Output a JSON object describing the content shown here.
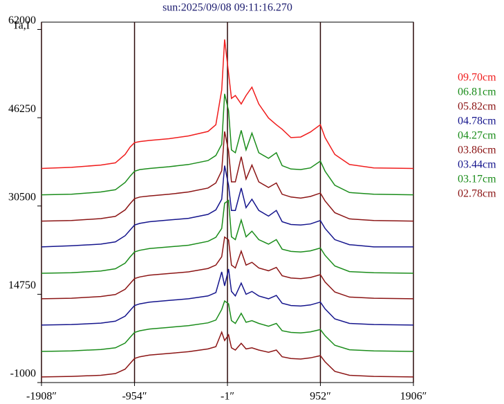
{
  "chart_data": {
    "type": "line",
    "title": "sun:2025/09/08 09:11:16.270",
    "ylabel": "Ta,I",
    "x": [
      -1908,
      -1600,
      -1300,
      -1150,
      -1050,
      -1000,
      -954,
      -900,
      -800,
      -600,
      -400,
      -200,
      -120,
      -60,
      -30,
      10,
      40,
      80,
      140,
      190,
      250,
      320,
      420,
      500,
      560,
      650,
      750,
      850,
      952,
      1000,
      1100,
      1250,
      1500,
      1906
    ],
    "xlim": [
      -1908,
      1906
    ],
    "ylim": [
      -1000,
      63300
    ],
    "xticks": [
      {
        "value": -1908,
        "label": "-1908″"
      },
      {
        "value": -954,
        "label": "-954″"
      },
      {
        "value": -1,
        "label": "-1″"
      },
      {
        "value": 952,
        "label": "952″"
      },
      {
        "value": 1906,
        "label": "1906″"
      }
    ],
    "yticks": [
      62000,
      46250,
      30500,
      14750,
      -1000
    ],
    "xgrid": true,
    "grid_color": "#2a0808",
    "legend": "right",
    "series": [
      {
        "name": "09.70cm",
        "color": "#f01c1c",
        "values": [
          37200,
          37400,
          37800,
          38200,
          39700,
          41000,
          41800,
          42000,
          42200,
          42500,
          43000,
          43800,
          45000,
          51200,
          60200,
          54200,
          49700,
          50200,
          48700,
          50200,
          51700,
          48700,
          46200,
          45000,
          44200,
          42700,
          42800,
          43700,
          45000,
          42700,
          39700,
          37900,
          37300,
          37200
        ]
      },
      {
        "name": "06.81cm",
        "color": "#1a8c1a",
        "values": [
          32500,
          32600,
          33000,
          33400,
          34700,
          35800,
          36700,
          37000,
          37200,
          37500,
          37900,
          38600,
          39500,
          41500,
          50500,
          47500,
          40500,
          40000,
          44000,
          40500,
          43500,
          40000,
          39000,
          40000,
          37700,
          37100,
          37000,
          37300,
          38500,
          36700,
          34200,
          32900,
          32600,
          32500
        ]
      },
      {
        "name": "05.82cm",
        "color": "#8b1414",
        "values": [
          27800,
          27900,
          28250,
          28650,
          29800,
          30900,
          31800,
          32100,
          32300,
          32600,
          33000,
          33700,
          34600,
          36800,
          43800,
          40300,
          34800,
          34800,
          39300,
          35300,
          37800,
          34800,
          33800,
          34600,
          32600,
          32100,
          31900,
          32200,
          32800,
          31400,
          29300,
          28200,
          27900,
          27800
        ]
      },
      {
        "name": "04.78cm",
        "color": "#14148c",
        "values": [
          23200,
          23400,
          23700,
          24100,
          25200,
          26200,
          27100,
          27400,
          27700,
          28000,
          28300,
          29000,
          29800,
          31700,
          37700,
          34200,
          29700,
          29700,
          33700,
          30200,
          31700,
          29700,
          28700,
          29700,
          27700,
          27200,
          27100,
          27300,
          27900,
          26500,
          24500,
          23600,
          23200,
          23200
        ]
      },
      {
        "name": "04.27cm",
        "color": "#1a8c1a",
        "values": [
          18500,
          18600,
          18900,
          19300,
          20300,
          21400,
          22300,
          22600,
          22900,
          23200,
          23500,
          24200,
          24900,
          26500,
          31000,
          31500,
          25000,
          24500,
          28000,
          25000,
          26000,
          24500,
          23700,
          24500,
          22800,
          22400,
          22300,
          22500,
          23000,
          21700,
          19800,
          18800,
          18600,
          18500
        ]
      },
      {
        "name": "03.86cm",
        "color": "#8b1414",
        "values": [
          13950,
          14050,
          14350,
          14700,
          15650,
          16650,
          17550,
          17850,
          18150,
          18450,
          18750,
          19350,
          19950,
          21450,
          24950,
          24450,
          19950,
          19450,
          22450,
          19950,
          20450,
          19450,
          18950,
          19550,
          18050,
          17650,
          17550,
          17750,
          18250,
          16950,
          15150,
          14250,
          14050,
          13950
        ]
      },
      {
        "name": "03.44cm",
        "color": "#14148c",
        "values": [
          9250,
          9350,
          9600,
          9950,
          10850,
          11850,
          12750,
          13050,
          13350,
          13650,
          13950,
          14450,
          15050,
          18750,
          16250,
          19250,
          15250,
          14450,
          16750,
          14750,
          15250,
          14450,
          13950,
          14550,
          13150,
          12750,
          12650,
          12850,
          13350,
          12150,
          10350,
          9550,
          9350,
          9250
        ]
      },
      {
        "name": "03.17cm",
        "color": "#1a8c1a",
        "values": [
          4550,
          4650,
          4900,
          5200,
          6050,
          7050,
          7950,
          8250,
          8550,
          8850,
          9150,
          9650,
          10150,
          12050,
          13550,
          13050,
          10050,
          9550,
          11350,
          9750,
          10050,
          9550,
          9050,
          9550,
          8250,
          7950,
          7850,
          8050,
          8450,
          7350,
          5650,
          4850,
          4650,
          4550
        ]
      },
      {
        "name": "02.78cm",
        "color": "#8b1414",
        "values": [
          0,
          100,
          300,
          600,
          1400,
          2400,
          3300,
          3600,
          3900,
          4200,
          4500,
          5000,
          5400,
          8000,
          6500,
          7500,
          5200,
          4800,
          6000,
          5000,
          5200,
          4800,
          4400,
          4800,
          3600,
          3300,
          3200,
          3400,
          3800,
          2700,
          1000,
          300,
          100,
          0
        ]
      }
    ]
  }
}
